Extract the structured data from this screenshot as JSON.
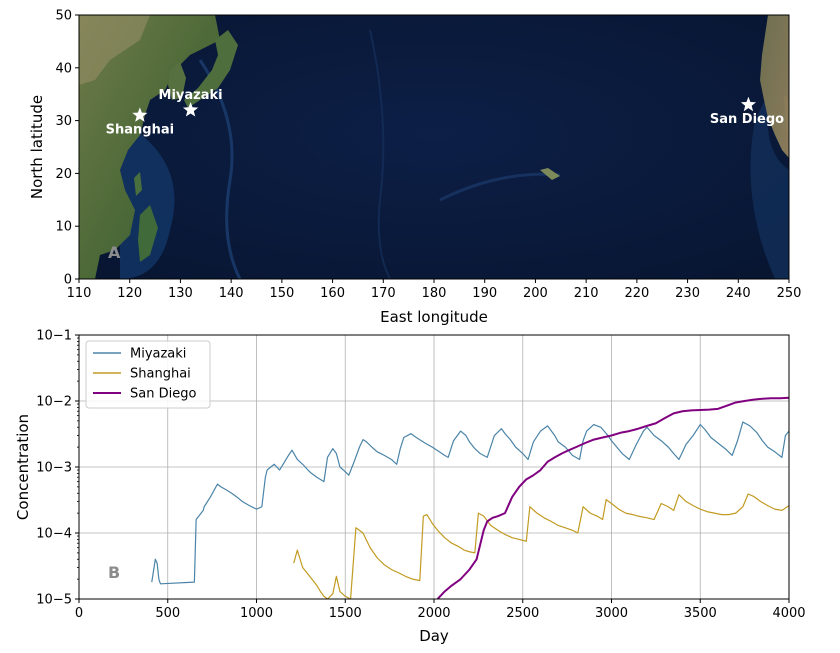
{
  "chart_data": [
    {
      "type": "map",
      "panel_label": "A",
      "xlabel": "East longitude",
      "ylabel": "North latitude",
      "xlim": [
        110,
        250
      ],
      "ylim": [
        0,
        50
      ],
      "xticks": [
        110,
        120,
        130,
        140,
        150,
        160,
        170,
        180,
        190,
        200,
        210,
        220,
        230,
        240,
        250
      ],
      "yticks": [
        0,
        10,
        20,
        30,
        40,
        50
      ],
      "locations": [
        {
          "name": "Miyazaki",
          "lon": 132,
          "lat": 32
        },
        {
          "name": "Shanghai",
          "lon": 122,
          "lat": 31
        },
        {
          "name": "San Diego",
          "lon": 242,
          "lat": 33
        }
      ],
      "colors": {
        "ocean": "#0b1a3c",
        "land": "#5c6a3c",
        "marker": "#ffffff"
      }
    },
    {
      "type": "line",
      "panel_label": "B",
      "xlabel": "Day",
      "ylabel": "Concentration",
      "xlim": [
        0,
        4000
      ],
      "ylim": [
        1e-05,
        0.1
      ],
      "yscale": "log",
      "grid": true,
      "legend_position": "upper-left",
      "xticks": [
        0,
        500,
        1000,
        1500,
        2000,
        2500,
        3000,
        3500,
        4000
      ],
      "yticks": [
        {
          "value": 1e-05,
          "label": "10−5"
        },
        {
          "value": 0.0001,
          "label": "10−4"
        },
        {
          "value": 0.001,
          "label": "10−3"
        },
        {
          "value": 0.01,
          "label": "10−2"
        },
        {
          "value": 0.1,
          "label": "10−1"
        }
      ],
      "series": [
        {
          "name": "Miyazaki",
          "color": "#4b84a8",
          "x": [
            410,
            430,
            440,
            450,
            455,
            460,
            650,
            660,
            700,
            705,
            740,
            780,
            800,
            830,
            860,
            890,
            920,
            960,
            1000,
            1030,
            1050,
            1060,
            1080,
            1100,
            1130,
            1180,
            1200,
            1230,
            1260,
            1290,
            1310,
            1340,
            1380,
            1400,
            1430,
            1450,
            1470,
            1500,
            1520,
            1550,
            1580,
            1600,
            1620,
            1650,
            1680,
            1720,
            1760,
            1790,
            1810,
            1830,
            1870,
            1900,
            1950,
            1990,
            2030,
            2060,
            2080,
            2110,
            2150,
            2180,
            2200,
            2230,
            2260,
            2300,
            2340,
            2380,
            2400,
            2430,
            2460,
            2500,
            2530,
            2560,
            2600,
            2640,
            2680,
            2700,
            2740,
            2780,
            2820,
            2840,
            2860,
            2900,
            2940,
            2980,
            3000,
            3030,
            3060,
            3100,
            3140,
            3180,
            3200,
            3240,
            3280,
            3320,
            3350,
            3380,
            3420,
            3460,
            3500,
            3530,
            3560,
            3600,
            3640,
            3680,
            3710,
            3740,
            3780,
            3820,
            3850,
            3880,
            3920,
            3960,
            3980,
            4000
          ],
          "y": [
            1.8e-05,
            4e-05,
            3.5e-05,
            2e-05,
            1.8e-05,
            1.7e-05,
            1.8e-05,
            0.00016,
            0.00022,
            0.00025,
            0.00035,
            0.00055,
            0.0005,
            0.00045,
            0.0004,
            0.00035,
            0.0003,
            0.00026,
            0.00023,
            0.00025,
            0.0007,
            0.0009,
            0.001,
            0.0011,
            0.0009,
            0.0015,
            0.0018,
            0.0013,
            0.0011,
            0.0009,
            0.0008,
            0.0007,
            0.0006,
            0.0014,
            0.0019,
            0.0016,
            0.001,
            0.00085,
            0.00075,
            0.0012,
            0.002,
            0.0026,
            0.0024,
            0.002,
            0.0017,
            0.0015,
            0.0013,
            0.0011,
            0.0019,
            0.0028,
            0.0032,
            0.0028,
            0.0023,
            0.002,
            0.0017,
            0.0015,
            0.0014,
            0.0025,
            0.0035,
            0.003,
            0.0024,
            0.0019,
            0.0016,
            0.0014,
            0.003,
            0.0038,
            0.0032,
            0.0026,
            0.002,
            0.0016,
            0.0013,
            0.0024,
            0.0035,
            0.0042,
            0.003,
            0.0024,
            0.002,
            0.0015,
            0.0013,
            0.0025,
            0.0035,
            0.0044,
            0.004,
            0.003,
            0.0025,
            0.002,
            0.0016,
            0.0013,
            0.0022,
            0.0035,
            0.004,
            0.003,
            0.0025,
            0.002,
            0.0016,
            0.0013,
            0.0022,
            0.003,
            0.0044,
            0.0036,
            0.0028,
            0.0023,
            0.0019,
            0.0015,
            0.0025,
            0.0048,
            0.0042,
            0.0033,
            0.0025,
            0.002,
            0.0017,
            0.0014,
            0.003,
            0.0035
          ]
        },
        {
          "name": "Shanghai",
          "color": "#c29b22",
          "x": [
            1210,
            1230,
            1260,
            1300,
            1340,
            1360,
            1380,
            1400,
            1430,
            1450,
            1470,
            1500,
            1530,
            1560,
            1600,
            1640,
            1680,
            1720,
            1760,
            1800,
            1840,
            1880,
            1920,
            1940,
            1960,
            1990,
            2020,
            2060,
            2100,
            2140,
            2170,
            2200,
            2230,
            2250,
            2280,
            2320,
            2360,
            2400,
            2440,
            2480,
            2520,
            2540,
            2580,
            2620,
            2660,
            2700,
            2740,
            2780,
            2810,
            2840,
            2880,
            2920,
            2950,
            2970,
            3000,
            3040,
            3080,
            3120,
            3150,
            3200,
            3240,
            3280,
            3320,
            3350,
            3380,
            3420,
            3460,
            3500,
            3540,
            3580,
            3620,
            3660,
            3700,
            3740,
            3770,
            3800,
            3840,
            3880,
            3920,
            3960,
            4000
          ],
          "y": [
            3.5e-05,
            5.5e-05,
            3e-05,
            2.2e-05,
            1.6e-05,
            1.3e-05,
            1.1e-05,
            1e-05,
            1.2e-05,
            2.2e-05,
            1.3e-05,
            1.1e-05,
            1e-05,
            0.00012,
            0.0001,
            6e-05,
            4.2e-05,
            3.3e-05,
            2.8e-05,
            2.5e-05,
            2.2e-05,
            2e-05,
            1.9e-05,
            0.00018,
            0.00019,
            0.00014,
            0.00011,
            8.5e-05,
            7e-05,
            6.2e-05,
            5.5e-05,
            5.2e-05,
            5e-05,
            0.0002,
            0.00018,
            0.00013,
            0.00011,
            9.5e-05,
            8.5e-05,
            8e-05,
            7.5e-05,
            0.00025,
            0.0002,
            0.00017,
            0.00015,
            0.00013,
            0.00012,
            0.00011,
            0.0001,
            0.00025,
            0.0002,
            0.00018,
            0.00016,
            0.00032,
            0.00028,
            0.00023,
            0.0002,
            0.00019,
            0.00018,
            0.00017,
            0.00016,
            0.00028,
            0.00025,
            0.00022,
            0.00038,
            0.0003,
            0.00026,
            0.00023,
            0.00021,
            0.0002,
            0.00019,
            0.00019,
            0.0002,
            0.00025,
            0.00039,
            0.00036,
            0.0003,
            0.00026,
            0.00023,
            0.00022,
            0.00026
          ]
        },
        {
          "name": "San Diego",
          "color": "#800080",
          "x": [
            2020,
            2060,
            2100,
            2150,
            2200,
            2240,
            2280,
            2300,
            2330,
            2360,
            2400,
            2440,
            2480,
            2520,
            2560,
            2600,
            2640,
            2680,
            2720,
            2760,
            2800,
            2850,
            2900,
            2950,
            3000,
            3050,
            3100,
            3150,
            3200,
            3250,
            3300,
            3350,
            3400,
            3450,
            3500,
            3550,
            3600,
            3650,
            3700,
            3750,
            3800,
            3850,
            3900,
            3950,
            4000
          ],
          "y": [
            1e-05,
            1.3e-05,
            1.6e-05,
            2e-05,
            2.8e-05,
            4e-05,
            0.00011,
            0.00015,
            0.00017,
            0.00018,
            0.0002,
            0.00035,
            0.0005,
            0.00065,
            0.00075,
            0.0009,
            0.0012,
            0.0014,
            0.0016,
            0.0018,
            0.002,
            0.0023,
            0.0026,
            0.0028,
            0.003,
            0.0033,
            0.0035,
            0.0038,
            0.0042,
            0.0046,
            0.0055,
            0.0065,
            0.007,
            0.0072,
            0.0073,
            0.0074,
            0.0076,
            0.0085,
            0.0095,
            0.01,
            0.0105,
            0.0108,
            0.011,
            0.011,
            0.0112
          ]
        }
      ]
    }
  ]
}
